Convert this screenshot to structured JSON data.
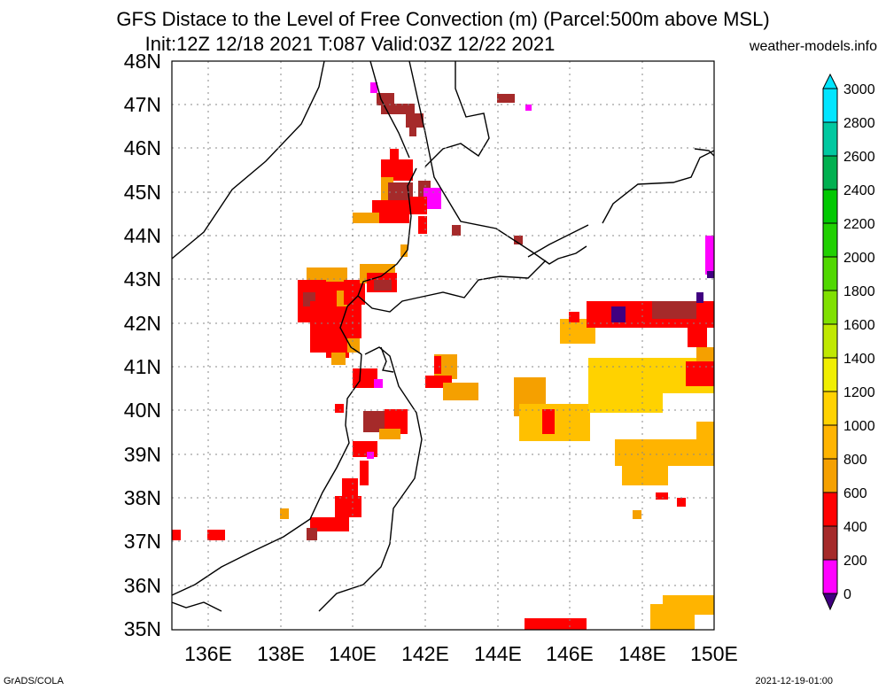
{
  "header": {
    "title": "GFS Distace to the Level of Free Convection (m) (Parcel:500m above MSL)",
    "subtitle": "Init:12Z 12/18 2021 T:087 Valid:03Z 12/22 2021",
    "site": "weather-models.info"
  },
  "map": {
    "lat_labels": [
      "48N",
      "47N",
      "46N",
      "45N",
      "44N",
      "43N",
      "42N",
      "41N",
      "40N",
      "39N",
      "38N",
      "37N",
      "36N",
      "35N"
    ],
    "lon_labels": [
      "136E",
      "138E",
      "140E",
      "142E",
      "144E",
      "146E",
      "148E",
      "150E"
    ],
    "lat_range": [
      35,
      48
    ],
    "lon_range": [
      135,
      150
    ],
    "grid": "dotted",
    "coastline_color": "#000000"
  },
  "colorbar": {
    "levels": [
      "3000",
      "2800",
      "2600",
      "2400",
      "2200",
      "2000",
      "1800",
      "1600",
      "1400",
      "1200",
      "1000",
      "800",
      "600",
      "400",
      "200",
      "0"
    ],
    "colors": [
      "#00e5ff",
      "#00c8a0",
      "#00b050",
      "#00c800",
      "#20d000",
      "#50d800",
      "#80e000",
      "#c0e800",
      "#f0ee00",
      "#ffd200",
      "#ffb400",
      "#f5a000",
      "#ff0000",
      "#a52a2a",
      "#ff00ff",
      "#400080"
    ]
  },
  "footer": {
    "left": "GrADS/COLA",
    "right": "2021-12-19-01:00"
  }
}
